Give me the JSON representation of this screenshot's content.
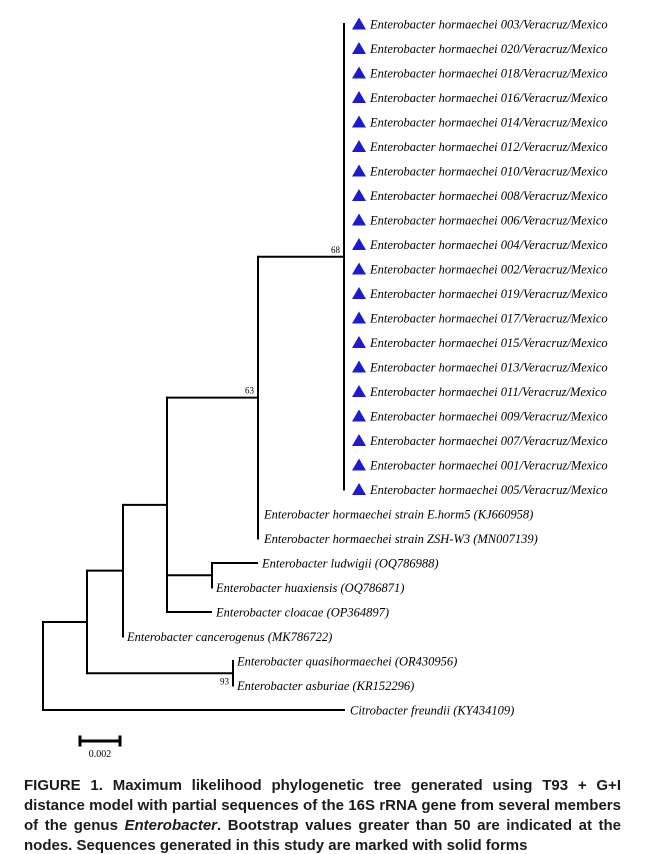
{
  "figure": {
    "line_color": "#000000",
    "marker_color": "#1c1ccd",
    "tips": [
      {
        "label": "Enterobacter hormaechei 003/Veracruz/Mexico",
        "marker": true
      },
      {
        "label": "Enterobacter hormaechei 020/Veracruz/Mexico",
        "marker": true
      },
      {
        "label": "Enterobacter hormaechei 018/Veracruz/Mexico",
        "marker": true
      },
      {
        "label": "Enterobacter hormaechei 016/Veracruz/Mexico",
        "marker": true
      },
      {
        "label": "Enterobacter hormaechei 014/Veracruz/Mexico",
        "marker": true
      },
      {
        "label": "Enterobacter hormaechei 012/Veracruz/Mexico",
        "marker": true
      },
      {
        "label": "Enterobacter hormaechei 010/Veracruz/Mexico",
        "marker": true
      },
      {
        "label": "Enterobacter hormaechei 008/Veracruz/Mexico",
        "marker": true
      },
      {
        "label": "Enterobacter hormaechei 006/Veracruz/Mexico",
        "marker": true
      },
      {
        "label": "Enterobacter hormaechei 004/Veracruz/Mexico",
        "marker": true
      },
      {
        "label": "Enterobacter hormaechei 002/Veracruz/Mexico",
        "marker": true
      },
      {
        "label": "Enterobacter hormaechei 019/Veracruz/Mexico",
        "marker": true
      },
      {
        "label": "Enterobacter hormaechei 017/Veracruz/Mexico",
        "marker": true
      },
      {
        "label": "Enterobacter hormaechei 015/Veracruz/Mexico",
        "marker": true
      },
      {
        "label": "Enterobacter hormaechei 013/Veracruz/Mexico",
        "marker": true
      },
      {
        "label": "Enterobacter hormaechei 011/Veracruz/Mexico",
        "marker": true
      },
      {
        "label": "Enterobacter hormaechei 009/Veracruz/Mexico",
        "marker": true
      },
      {
        "label": "Enterobacter hormaechei 007/Veracruz/Mexico",
        "marker": true
      },
      {
        "label": "Enterobacter hormaechei 001/Veracruz/Mexico",
        "marker": true
      },
      {
        "label": "Enterobacter hormaechei 005/Veracruz/Mexico",
        "marker": true
      },
      {
        "label": "Enterobacter hormaechei strain E.horm5 (KJ660958)",
        "marker": false
      },
      {
        "label": "Enterobacter hormaechei strain ZSH-W3 (MN007139)",
        "marker": false
      },
      {
        "label": "Enterobacter ludwigii (OQ786988)",
        "marker": false
      },
      {
        "label": "Enterobacter huaxiensis (OQ786871)",
        "marker": false
      },
      {
        "label": "Enterobacter cloacae (OP364897)",
        "marker": false
      },
      {
        "label": "Enterobacter cancerogenus (MK786722)",
        "marker": false
      },
      {
        "label": "Enterobacter quasihormaechei (OR430956)",
        "marker": false
      },
      {
        "label": "Enterobacter asburiae (KR152296)",
        "marker": false
      },
      {
        "label": "Citrobacter freundii (KY434109)",
        "marker": false
      }
    ],
    "bootstraps": [
      {
        "value": "68"
      },
      {
        "value": "63"
      },
      {
        "value": "93"
      }
    ],
    "scale_bar": {
      "label": "0.002"
    }
  },
  "caption": {
    "label": "FIGURE 1.",
    "part1": " Maximum likelihood phylogenetic tree generated using T93 + G+I distance model with partial sequences of the 16S rRNA gene from several members of the genus ",
    "species": "Enterobacter",
    "part2": ". Bootstrap values greater than 50 are indicated at the nodes. Sequences generated in this study are marked with solid forms"
  }
}
